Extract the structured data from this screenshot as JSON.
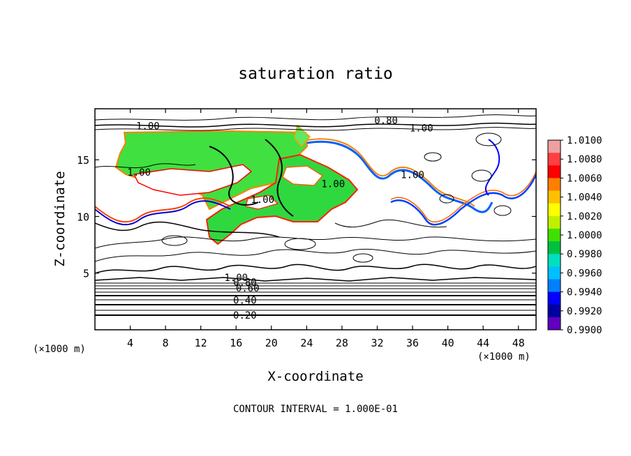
{
  "chart_data": {
    "type": "heatmap",
    "title": "saturation ratio",
    "xlabel": "X-coordinate",
    "ylabel": "Z-coordinate",
    "x_unit": "(×1000 m)",
    "z_unit": "(×1000 m)",
    "xlim": [
      0,
      50
    ],
    "ylim": [
      0,
      19.5
    ],
    "x_ticks": [
      4,
      8,
      12,
      16,
      20,
      24,
      28,
      32,
      36,
      40,
      44,
      48
    ],
    "y_ticks": [
      5,
      10,
      15
    ],
    "footer": "CONTOUR INTERVAL = 1.000E-01",
    "colorbar": {
      "labels": [
        "1.0100",
        "1.0080",
        "1.0060",
        "1.0040",
        "1.0020",
        "1.0000",
        "0.9980",
        "0.9960",
        "0.9940",
        "0.9920",
        "0.9900"
      ],
      "colors": [
        "#f0a0a0",
        "#ff4040",
        "#ff0000",
        "#ff8000",
        "#ffc000",
        "#ffff00",
        "#c0f000",
        "#40e000",
        "#00c040",
        "#00e0c0",
        "#00c0ff",
        "#0080ff",
        "#0000ff",
        "#0000a0",
        "#6000c0"
      ]
    },
    "contour_labels": [
      {
        "text": "0.20",
        "x": 17.0,
        "z": 1.3
      },
      {
        "text": "0.40",
        "x": 17.0,
        "z": 2.6
      },
      {
        "text": "0.60",
        "x": 17.3,
        "z": 3.7
      },
      {
        "text": "0.80",
        "x": 17.0,
        "z": 4.2
      },
      {
        "text": "1.00",
        "x": 16.0,
        "z": 4.6
      },
      {
        "text": "1.00",
        "x": 6.0,
        "z": 18.0
      },
      {
        "text": "1.00",
        "x": 5.0,
        "z": 13.9
      },
      {
        "text": "1.00",
        "x": 19.0,
        "z": 11.5
      },
      {
        "text": "1.00",
        "x": 27.0,
        "z": 12.9
      },
      {
        "text": "1.00",
        "x": 36.0,
        "z": 13.7
      },
      {
        "text": "0.80",
        "x": 33.0,
        "z": 18.5
      },
      {
        "text": "1.00",
        "x": 37.0,
        "z": 17.8
      }
    ]
  }
}
